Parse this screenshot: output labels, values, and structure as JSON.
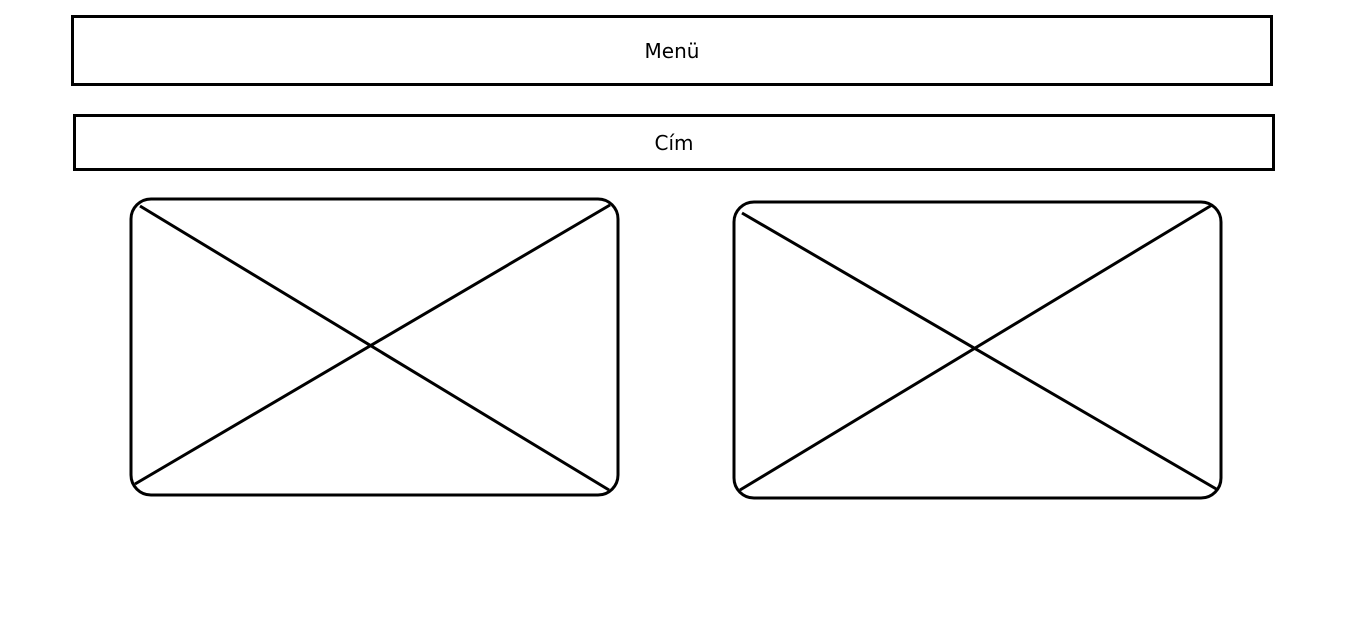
{
  "wireframe": {
    "menu_label": "Menü",
    "title_label": "Cím",
    "placeholders": [
      {
        "kind": "image-placeholder"
      },
      {
        "kind": "image-placeholder"
      }
    ],
    "colors": {
      "stroke": "#000000",
      "background": "#ffffff"
    }
  }
}
